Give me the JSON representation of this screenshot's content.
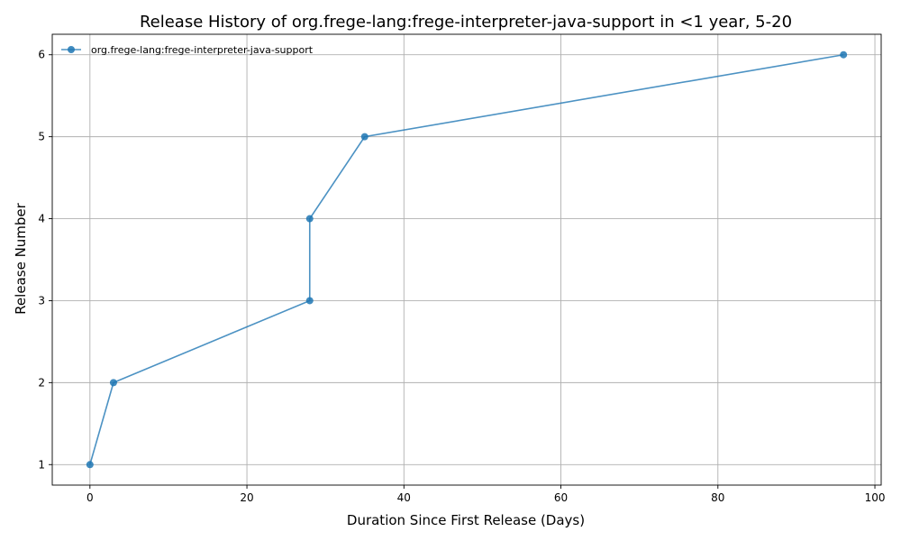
{
  "chart_data": {
    "type": "line",
    "title": "Release History of org.frege-lang:frege-interpreter-java-support in <1 year, 5-20",
    "xlabel": "Duration Since First Release (Days)",
    "ylabel": "Release Number",
    "xlim": [
      -4.8,
      100.8
    ],
    "ylim": [
      0.75,
      6.25
    ],
    "xticks": [
      0,
      20,
      40,
      60,
      80,
      100
    ],
    "yticks": [
      1,
      2,
      3,
      4,
      5,
      6
    ],
    "grid": true,
    "legend_position": "top-left",
    "series": [
      {
        "name": "org.frege-lang:frege-interpreter-java-support",
        "color": "#1f77b4",
        "x": [
          0,
          3,
          28,
          28,
          35,
          96
        ],
        "y": [
          1,
          2,
          3,
          4,
          5,
          6
        ]
      }
    ]
  }
}
